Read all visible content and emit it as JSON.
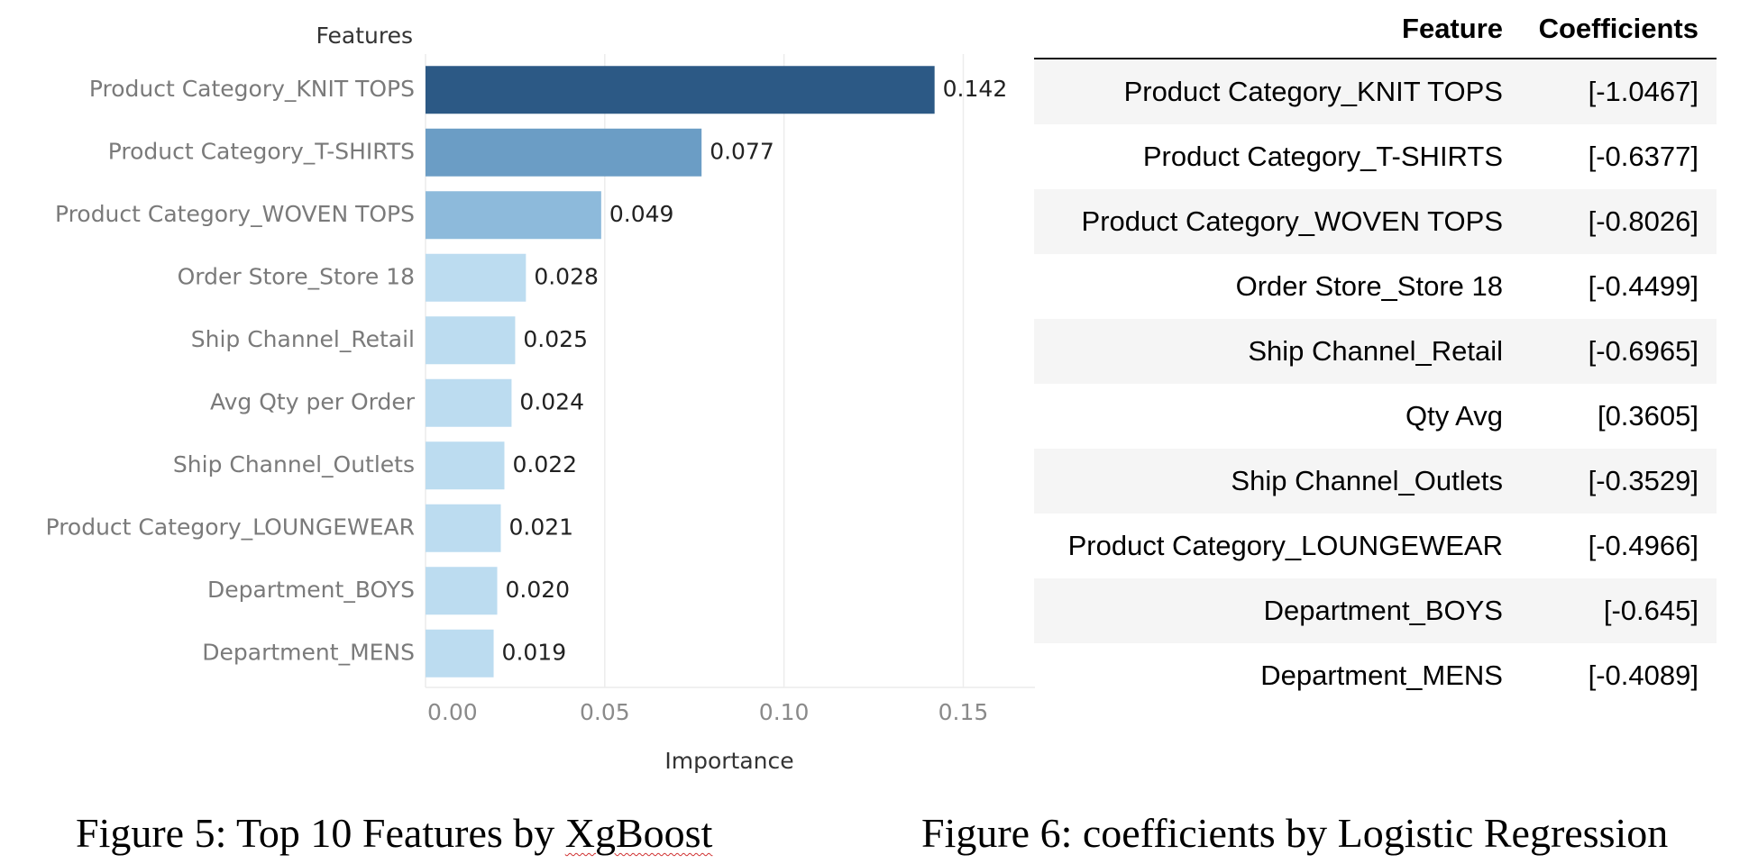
{
  "chart_data": [
    {
      "type": "bar",
      "orientation": "horizontal",
      "ylabel": "Features",
      "xlabel": "Importance",
      "categories": [
        "Product Category_KNIT TOPS",
        "Product Category_T-SHIRTS",
        "Product Category_WOVEN TOPS",
        "Order Store_Store 18",
        "Ship Channel_Retail",
        "Avg Qty per Order",
        "Ship Channel_Outlets",
        "Product Category_LOUNGEWEAR",
        "Department_BOYS",
        "Department_MENS"
      ],
      "values": [
        0.142,
        0.077,
        0.049,
        0.028,
        0.025,
        0.024,
        0.022,
        0.021,
        0.02,
        0.019
      ],
      "value_labels": [
        "0.142",
        "0.077",
        "0.049",
        "0.028",
        "0.025",
        "0.024",
        "0.022",
        "0.021",
        "0.020",
        "0.019"
      ],
      "xlim": [
        0,
        0.17
      ],
      "xticks": [
        0,
        0.05,
        0.1,
        0.15
      ],
      "xtick_labels": [
        "0.00",
        "0.05",
        "0.10",
        "0.15"
      ],
      "grid": "vertical",
      "bar_colors": [
        "#2c5985",
        "#6b9dc5",
        "#8dbadb",
        "#bcdcf0",
        "#bcdcf0",
        "#bcdcf0",
        "#bcdcf0",
        "#bcdcf0",
        "#bcdcf0",
        "#bcdcf0"
      ]
    },
    {
      "type": "table",
      "columns": [
        "Feature",
        "Coefficients"
      ],
      "rows": [
        [
          "Product Category_KNIT TOPS",
          "[-1.0467]"
        ],
        [
          "Product Category_T-SHIRTS",
          "[-0.6377]"
        ],
        [
          "Product Category_WOVEN TOPS",
          "[-0.8026]"
        ],
        [
          "Order Store_Store 18",
          "[-0.4499]"
        ],
        [
          "Ship Channel_Retail",
          "[-0.6965]"
        ],
        [
          "Qty Avg",
          "[0.3605]"
        ],
        [
          "Ship Channel_Outlets",
          "[-0.3529]"
        ],
        [
          "Product Category_LOUNGEWEAR",
          "[-0.4966]"
        ],
        [
          "Department_BOYS",
          "[-0.645]"
        ],
        [
          "Department_MENS",
          "[-0.4089]"
        ]
      ]
    }
  ],
  "captions": {
    "fig5_prefix": "Figure 5: Top 10 Features by ",
    "fig5_word": "XgBoost",
    "fig6": "Figure 6: coefficients by Logistic Regression"
  },
  "colors": {
    "grid": "#ececec",
    "tick_text": "#8a8a8a",
    "category_text": "#7a7a7a",
    "value_text": "#222222",
    "table_shade": "#f5f5f5"
  }
}
